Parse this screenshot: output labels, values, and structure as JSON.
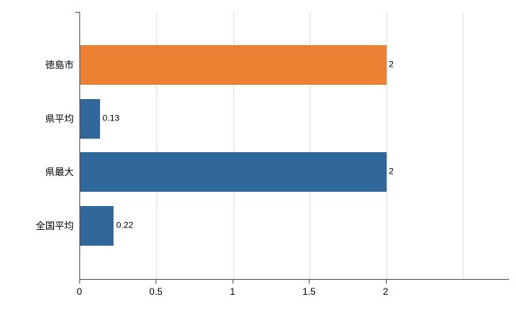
{
  "chart_data": {
    "type": "bar",
    "orientation": "horizontal",
    "title": "",
    "xlabel": "",
    "ylabel": "",
    "categories": [
      "徳島市",
      "県平均",
      "県最大",
      "全国平均"
    ],
    "values": [
      2,
      0.13,
      2,
      0.22
    ],
    "value_labels": [
      "2",
      "0.13",
      "2",
      "0.22"
    ],
    "bar_colors": [
      "#EE8033",
      "#31689B",
      "#31689B",
      "#31689B"
    ],
    "xlim": [
      0,
      2.8
    ],
    "xticks": [
      {
        "value": 0,
        "label": "0"
      },
      {
        "value": 0.5,
        "label": "0.5"
      },
      {
        "value": 1,
        "label": "1"
      },
      {
        "value": 1.5,
        "label": "1.5"
      },
      {
        "value": 2,
        "label": "2"
      }
    ],
    "grid_ticks": [
      0.5,
      1,
      1.5,
      2,
      2.5
    ],
    "grid": true,
    "legend": false,
    "colors": {
      "axis": "#595959",
      "gridline": "#e0e0e0",
      "text": "#000000",
      "background": "#ffffff"
    }
  }
}
